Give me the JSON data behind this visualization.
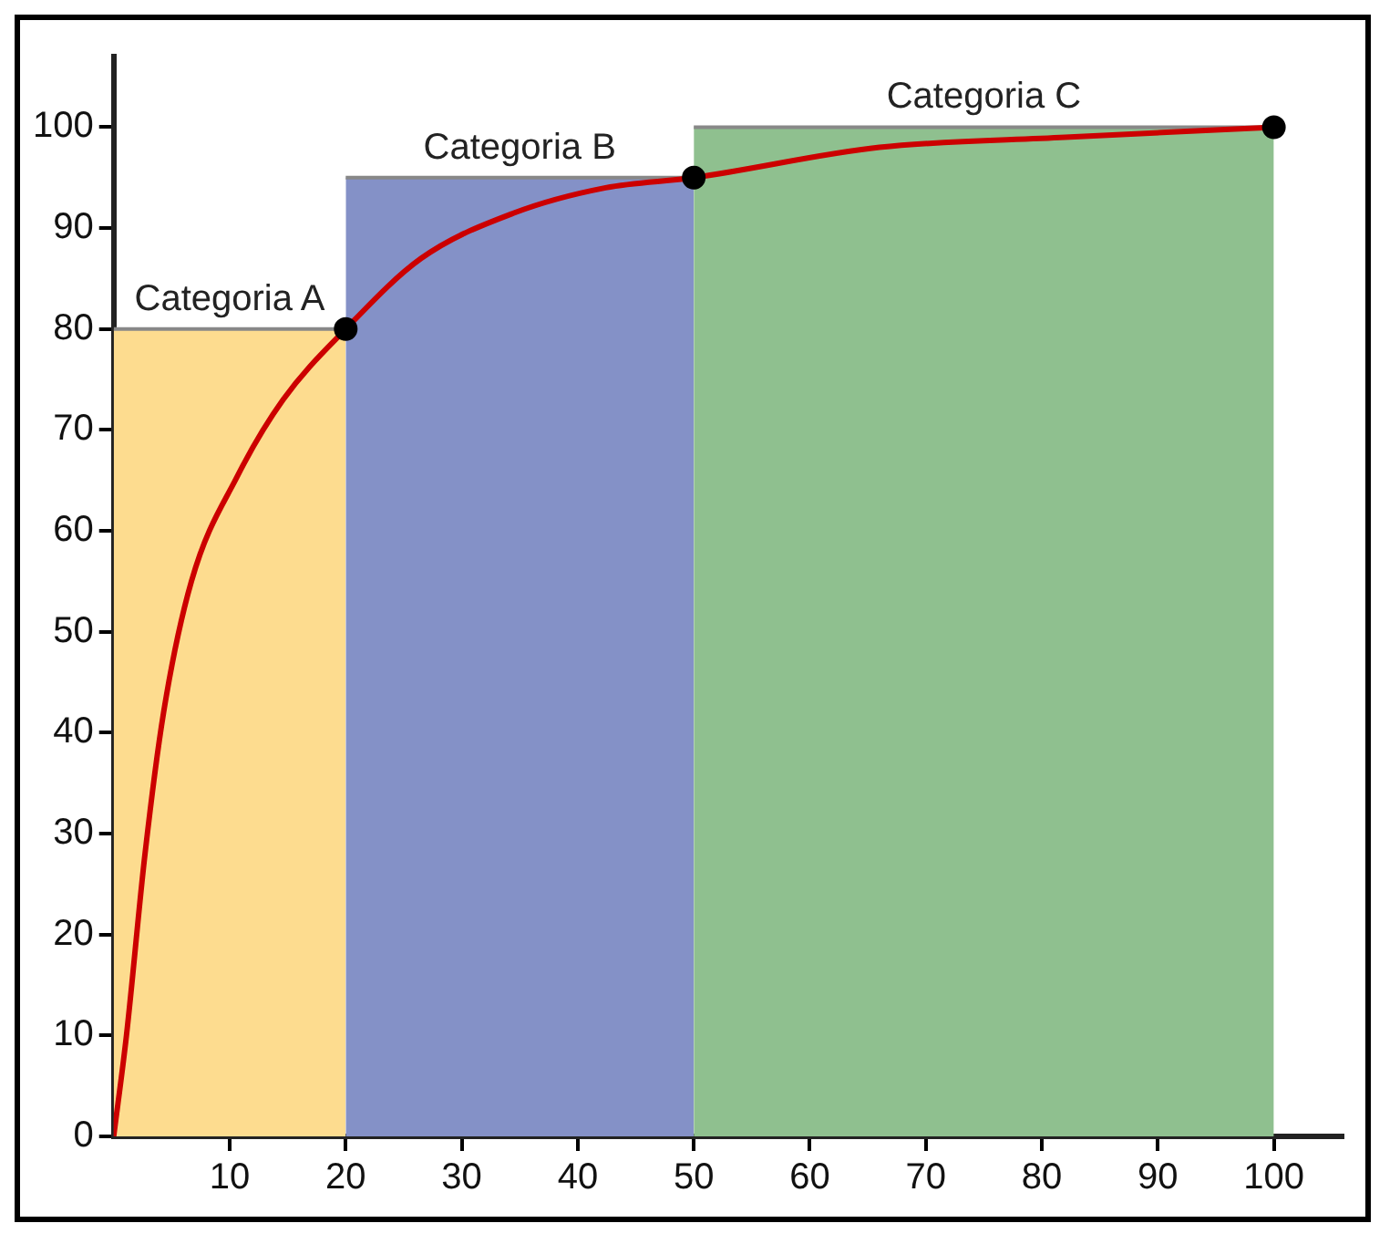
{
  "chart_data": {
    "type": "line",
    "xlim": [
      0,
      106
    ],
    "xticks": [
      10,
      20,
      30,
      40,
      50,
      60,
      70,
      80,
      90,
      100
    ],
    "ylim": [
      0,
      107
    ],
    "yticks": [
      0,
      10,
      20,
      30,
      40,
      50,
      60,
      70,
      80,
      90,
      100
    ],
    "grid": false,
    "legend": false,
    "series": [
      {
        "type": "area",
        "color": "#fddc8f",
        "x": [
          0,
          20
        ],
        "values": [
          80,
          80
        ]
      },
      {
        "type": "area",
        "color": "#8491c7",
        "x": [
          20,
          50
        ],
        "values": [
          95,
          95
        ]
      },
      {
        "type": "area",
        "color": "#8fc08f",
        "x": [
          50,
          100
        ],
        "values": [
          100,
          100
        ]
      },
      {
        "type": "line",
        "color": "#cc0000",
        "marker": "none",
        "x": [
          0,
          1.1,
          2.7,
          4.3,
          6.7,
          10.7,
          14.6,
          20,
          26.5,
          34.5,
          42.4,
          50,
          66,
          82,
          100
        ],
        "values": [
          0,
          10,
          28,
          42,
          55,
          65.5,
          73,
          80,
          87,
          91.5,
          94,
          95,
          98,
          99,
          100
        ]
      },
      {
        "type": "scatter",
        "color": "#000000",
        "marker": "circle",
        "x": [
          20,
          50,
          100
        ],
        "values": [
          80,
          95,
          100
        ]
      }
    ],
    "annotations": [
      {
        "text": "Categoria A",
        "x": 10,
        "y": 80
      },
      {
        "text": "Categoria B",
        "x": 35,
        "y": 95
      },
      {
        "text": "Categoria C",
        "x": 75,
        "y": 100
      }
    ]
  }
}
